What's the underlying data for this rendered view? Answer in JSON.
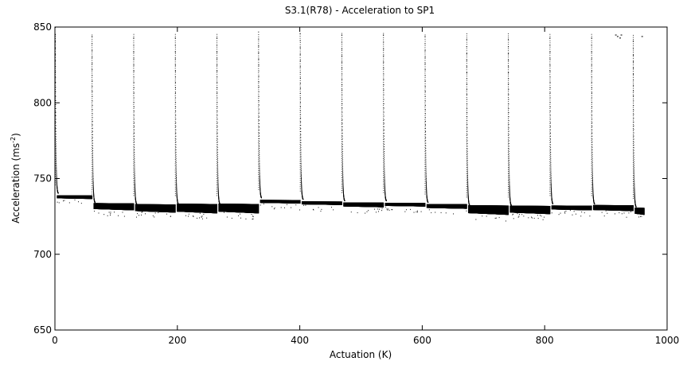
{
  "chart_data": {
    "type": "scatter",
    "title": "S3.1(R78) - Acceleration to SP1",
    "xlabel": "Actuation (K)",
    "ylabel_main": "Acceleration (ms",
    "ylabel_sup": "-2",
    "ylabel_end": ")",
    "xlim": [
      0,
      1000
    ],
    "ylim": [
      650,
      850
    ],
    "x_ticks": [
      0,
      200,
      400,
      600,
      800,
      1000
    ],
    "y_ticks": [
      650,
      700,
      750,
      800,
      850
    ],
    "x_tick_labels": [
      "0",
      "200",
      "400",
      "600",
      "800",
      "1000"
    ],
    "y_tick_labels": [
      "650",
      "700",
      "750",
      "800",
      "850"
    ],
    "grid": false,
    "legend": "none",
    "marker_color": "#000000",
    "segments": [
      {
        "start": 0,
        "end": 60,
        "plateau": 738,
        "band": 1.5
      },
      {
        "start": 60,
        "end": 128,
        "plateau": 732,
        "band": 3.0
      },
      {
        "start": 128,
        "end": 196,
        "plateau": 731,
        "band": 3.5
      },
      {
        "start": 196,
        "end": 264,
        "plateau": 731,
        "band": 4.0
      },
      {
        "start": 264,
        "end": 332,
        "plateau": 731,
        "band": 4.0
      },
      {
        "start": 332,
        "end": 400,
        "plateau": 735,
        "band": 1.5
      },
      {
        "start": 400,
        "end": 468,
        "plateau": 734,
        "band": 1.5
      },
      {
        "start": 468,
        "end": 536,
        "plateau": 733,
        "band": 2.0
      },
      {
        "start": 536,
        "end": 604,
        "plateau": 733,
        "band": 1.5
      },
      {
        "start": 604,
        "end": 672,
        "plateau": 732,
        "band": 2.0
      },
      {
        "start": 672,
        "end": 740,
        "plateau": 730,
        "band": 4.0
      },
      {
        "start": 740,
        "end": 808,
        "plateau": 730,
        "band": 3.5
      },
      {
        "start": 808,
        "end": 876,
        "plateau": 731,
        "band": 2.0
      },
      {
        "start": 876,
        "end": 944,
        "plateau": 731,
        "band": 2.5
      },
      {
        "start": 944,
        "end": 962,
        "plateau": 729,
        "band": 3.0
      }
    ]
  }
}
